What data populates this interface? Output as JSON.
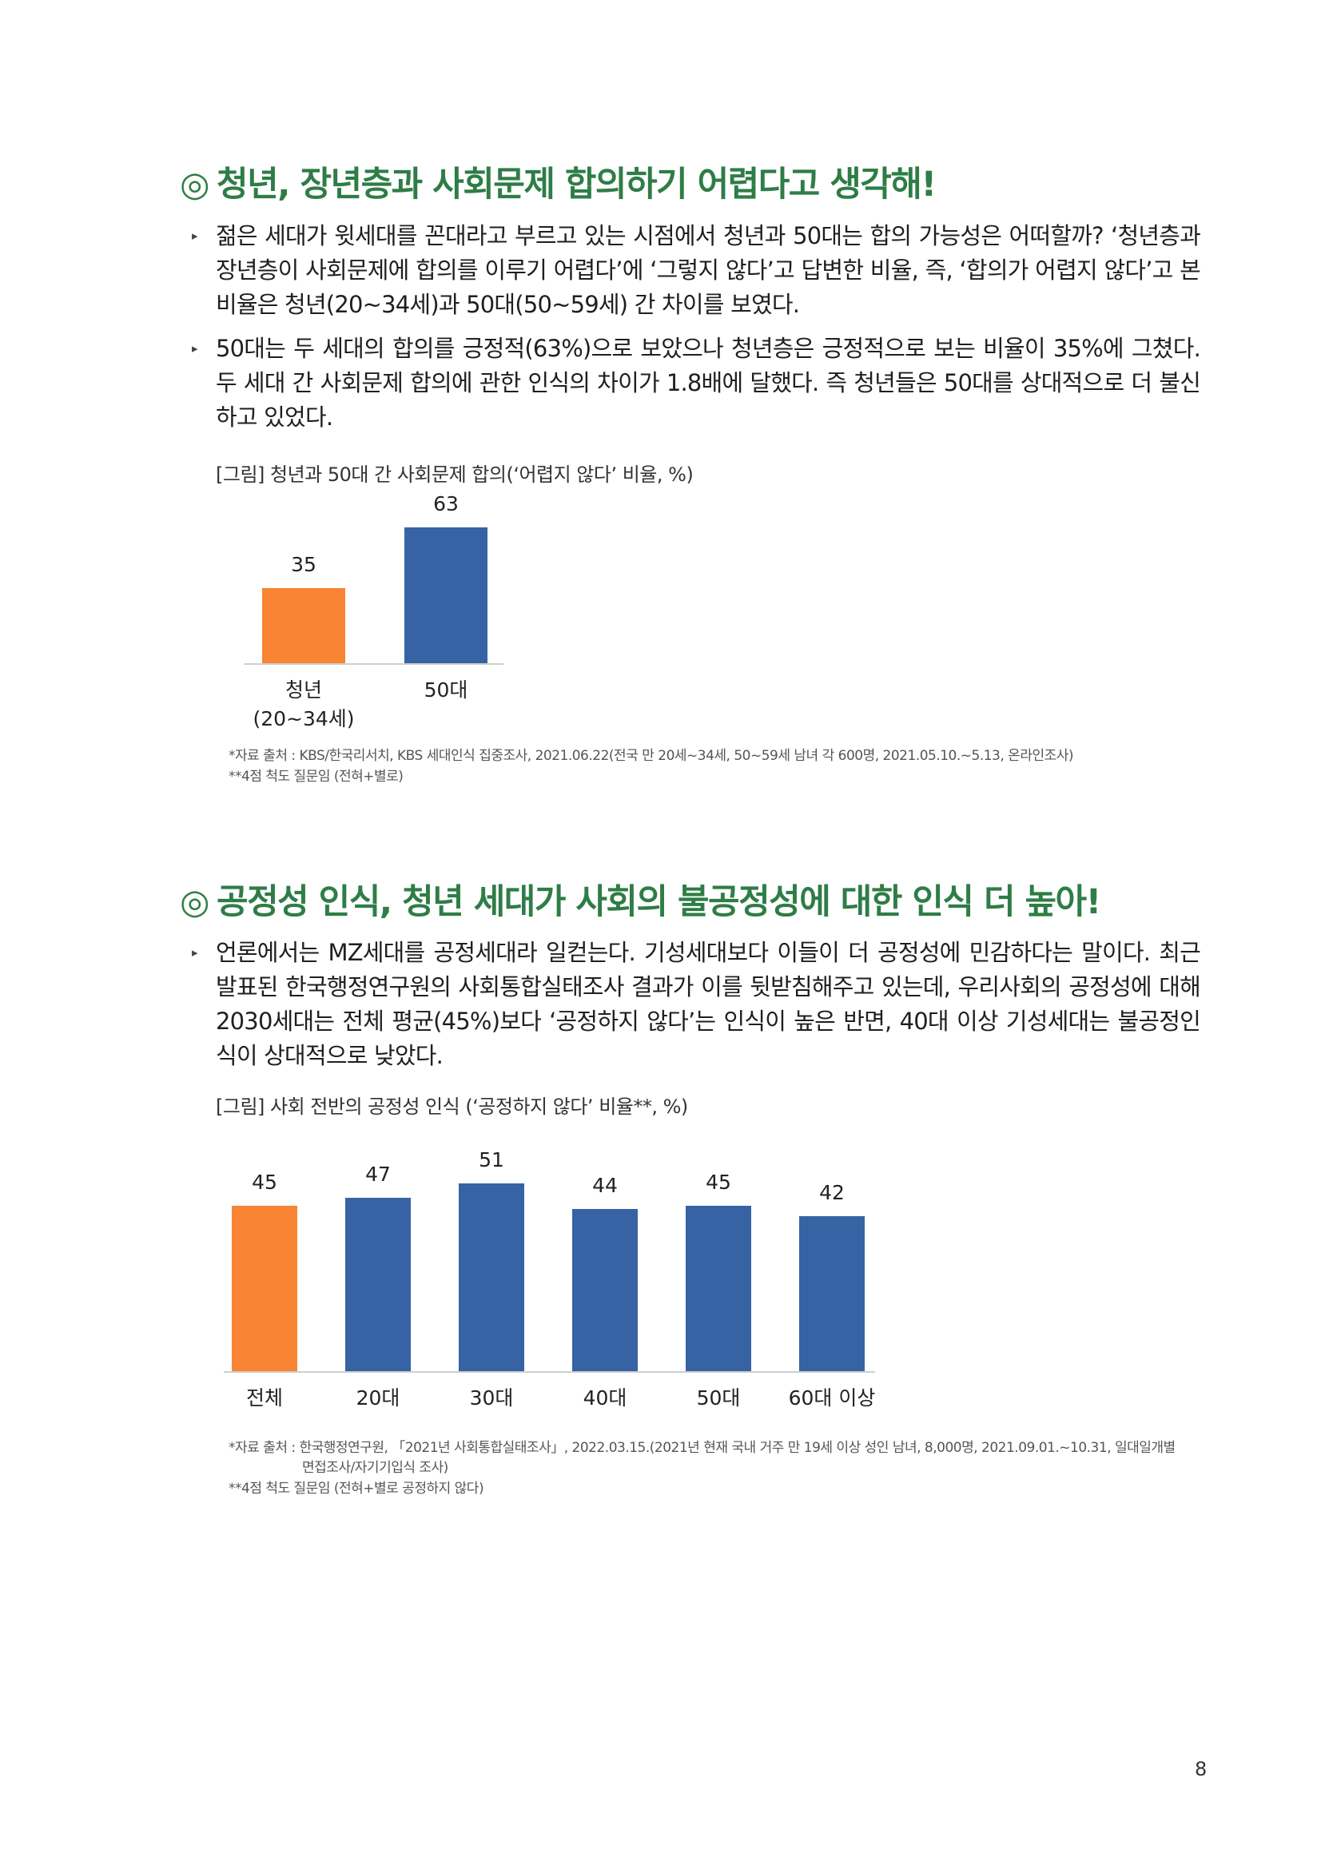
{
  "section1": {
    "mark": "◎",
    "heading": "청년, 장년층과 사회문제 합의하기 어렵다고 생각해!",
    "bullet": "▸",
    "para1": "젊은 세대가 윗세대를 꼰대라고 부르고 있는 시점에서 청년과 50대는 합의 가능성은 어떠할까? ‘청년층과 장년층이 사회문제에 합의를 이루기 어렵다’에 ‘그렇지 않다’고 답변한 비율, 즉, ‘합의가 어렵지 않다’고 본 비율은 청년(20~34세)과 50대(50~59세) 간 차이를 보였다.",
    "para2": "50대는 두 세대의 합의를 긍정적(63%)으로 보았으나 청년층은 긍정적으로 보는 비율이 35%에 그쳤다. 두 세대 간 사회문제 합의에 관한 인식의 차이가 1.8배에 달했다. 즉 청년들은 50대를 상대적으로 더 불신하고 있었다.",
    "caption": "[그림] 청년과 50대 간 사회문제 합의(‘어렵지 않다’ 비율, %)",
    "note1": "*자료 출처 : KBS/한국리서치, KBS 세대인식 집중조사, 2021.06.22(전국 만 20세~34세, 50~59세 남녀 각 600명, 2021.05.10.~5.13, 온라인조사)",
    "note2": "**4점 척도 질문임 (전혀+별로)"
  },
  "section2": {
    "mark": "◎",
    "heading": "공정성 인식, 청년 세대가 사회의 불공정성에 대한 인식 더 높아!",
    "bullet": "▸",
    "para1": "언론에서는 MZ세대를 공정세대라 일컫는다. 기성세대보다 이들이 더 공정성에 민감하다는 말이다. 최근 발표된 한국행정연구원의 사회통합실태조사 결과가 이를 뒷받침해주고 있는데, 우리사회의 공정성에 대해 2030세대는 전체 평균(45%)보다 ‘공정하지 않다’는 인식이 높은 반면, 40대 이상 기성세대는 불공정인식이 상대적으로 낮았다.",
    "caption": "[그림] 사회 전반의 공정성 인식 (‘공정하지 않다’ 비율**, %)",
    "note1a": "*자료 출처 : 한국행정연구원, 「2021년 사회통합실태조사」, 2022.03.15.(2021년 현재 국내 거주 만 19세 이상 성인 남녀, 8,000명, 2021.09.01.~10.31, 일대일개별",
    "note1b": "면접조사/자기기입식 조사)",
    "note2": "**4점 척도 질문임 (전혀+별로 공정하지 않다)"
  },
  "colors": {
    "orange": "#f98433",
    "blue": "#3763a4",
    "green": "#2e7d46"
  },
  "chart_data": [
    {
      "type": "bar",
      "categories": [
        "청년\n(20~34세)",
        "50대"
      ],
      "category_lines": [
        [
          "청년",
          "(20~34세)"
        ],
        [
          "50대"
        ]
      ],
      "values": [
        35,
        63
      ],
      "bar_colors": [
        "#f98433",
        "#3763a4"
      ],
      "ylim": [
        0,
        63
      ]
    },
    {
      "type": "bar",
      "categories": [
        "전체",
        "20대",
        "30대",
        "40대",
        "50대",
        "60대 이상"
      ],
      "values": [
        45,
        47,
        51,
        44,
        45,
        42
      ],
      "bar_colors": [
        "#f98433",
        "#3763a4",
        "#3763a4",
        "#3763a4",
        "#3763a4",
        "#3763a4"
      ],
      "ylim": [
        0,
        51
      ]
    }
  ],
  "page_number": "8"
}
